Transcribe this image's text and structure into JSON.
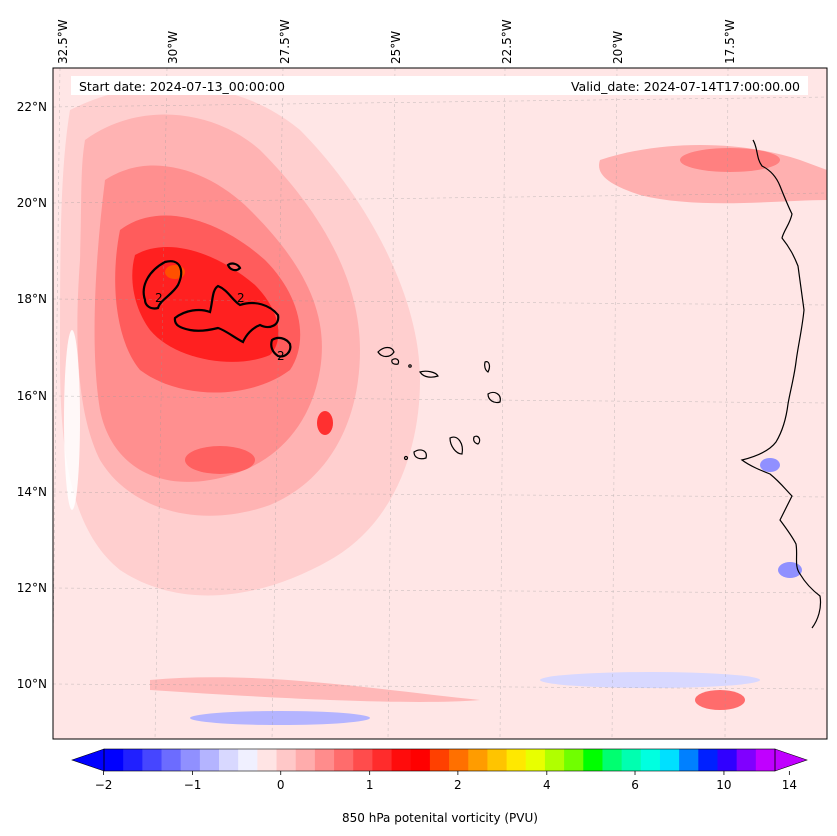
{
  "map": {
    "start_date_text": "Start date: 2024-07-13_00:00:00",
    "valid_date_text": "Valid_date: 2024-07-14T17:00:00.00",
    "field": "850 hPa potential vorticity",
    "lon_labels": [
      "32.5°W",
      "30°W",
      "27.5°W",
      "25°W",
      "22.5°W",
      "20°W",
      "17.5°W"
    ],
    "lat_labels": [
      "22°N",
      "20°N",
      "18°N",
      "16°N",
      "14°N",
      "12°N",
      "10°N"
    ],
    "contour_label": "2",
    "gridlines": true,
    "colors": {
      "positive": "#ff0000",
      "negative": "#0000ff",
      "coast": "#000000"
    }
  },
  "colorbar": {
    "label": "850 hPa potenital vorticity (PVU)",
    "tick_labels": [
      "−2",
      "−1",
      "0",
      "1",
      "2",
      "4",
      "6",
      "10",
      "14"
    ],
    "tick_values": [
      -2,
      -1,
      0,
      1,
      2,
      4,
      6,
      10,
      14
    ],
    "colors": [
      "#0000ff",
      "#2020ff",
      "#4646ff",
      "#6c6cff",
      "#9090ff",
      "#b4b4ff",
      "#d8d8ff",
      "#f0f0ff",
      "#ffe4e4",
      "#ffc8c8",
      "#ffacac",
      "#ff8c8c",
      "#ff6c6c",
      "#ff4c4c",
      "#ff2c2c",
      "#ff0c0c",
      "#ff0000",
      "#ff4000",
      "#ff7000",
      "#ff9c00",
      "#ffc400",
      "#ffe800",
      "#e8ff00",
      "#b0ff00",
      "#70ff00",
      "#00ff00",
      "#00ff70",
      "#00ffb0",
      "#00ffe0",
      "#00e0ff",
      "#0080ff",
      "#0020ff",
      "#3000ff",
      "#8000ff",
      "#c000ff"
    ],
    "extend": "both"
  }
}
